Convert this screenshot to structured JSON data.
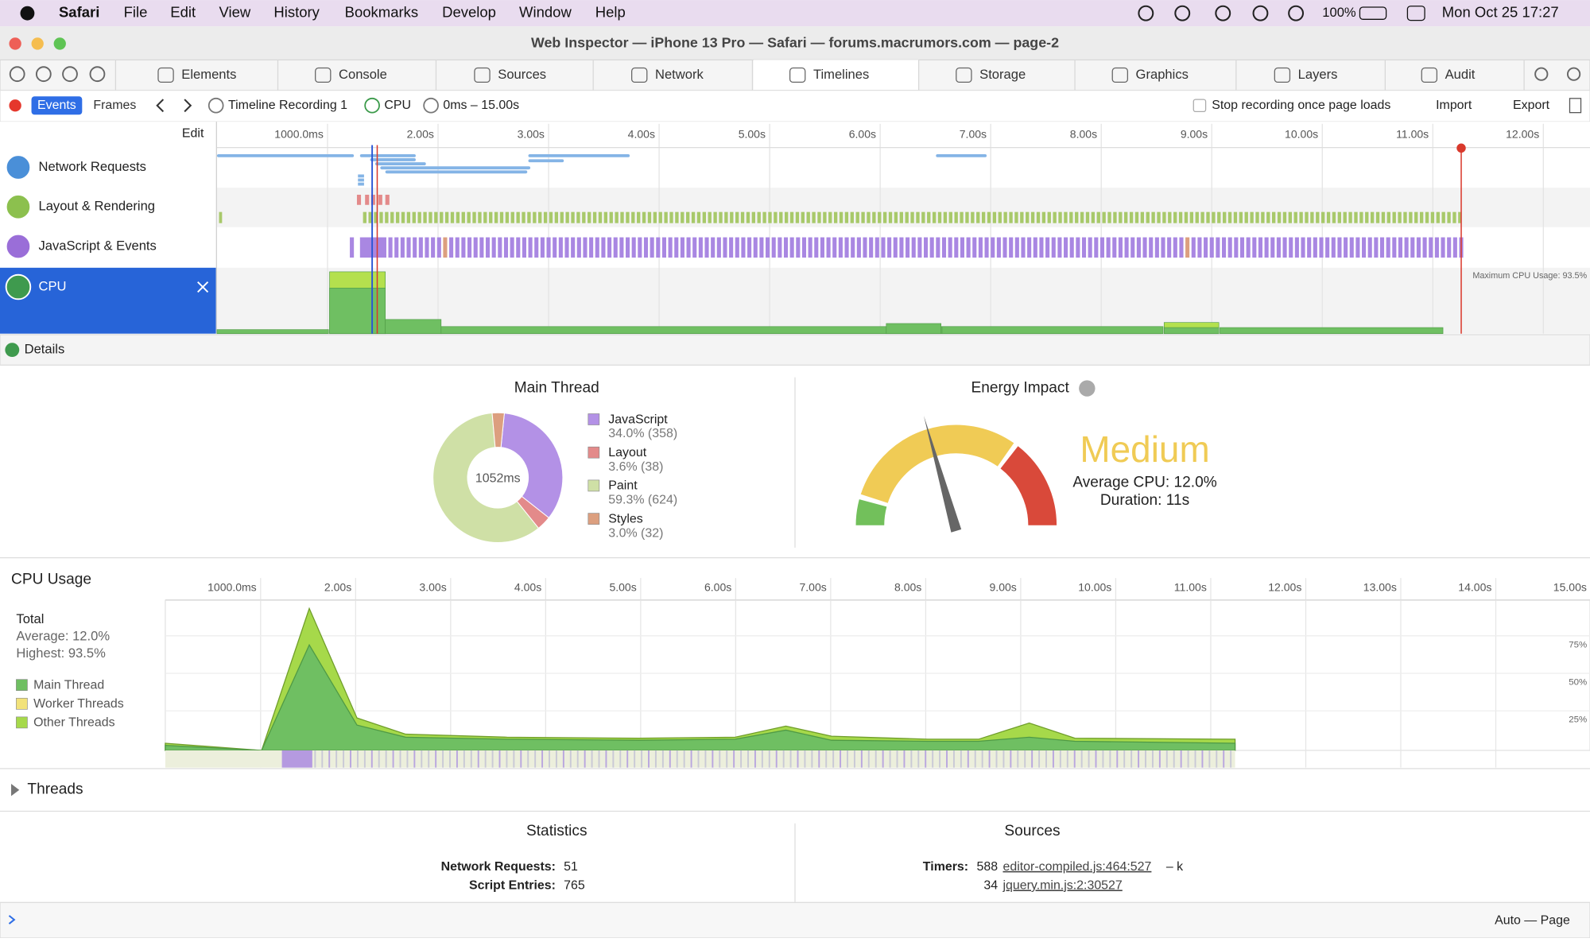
{
  "menubar": {
    "app": "Safari",
    "items": [
      "File",
      "Edit",
      "View",
      "History",
      "Bookmarks",
      "Develop",
      "Window",
      "Help"
    ],
    "battery": "100%",
    "clock": "Mon Oct 25  17:27"
  },
  "window_title": "Web Inspector — iPhone 13 Pro — Safari — forums.macrumors.com — page-2",
  "tabs": [
    "Elements",
    "Console",
    "Sources",
    "Network",
    "Timelines",
    "Storage",
    "Graphics",
    "Layers",
    "Audit"
  ],
  "toolbar": {
    "modes": [
      "Events",
      "Frames"
    ],
    "breadcrumbs": [
      "Timeline Recording 1",
      "CPU",
      "0ms – 15.00s"
    ],
    "stop_label": "Stop recording once page loads",
    "import": "Import",
    "export": "Export"
  },
  "timeline": {
    "edit": "Edit",
    "ruler": [
      "1000.0ms",
      "2.00s",
      "3.00s",
      "4.00s",
      "5.00s",
      "6.00s",
      "7.00s",
      "8.00s",
      "9.00s",
      "10.00s",
      "11.00s",
      "12.00s"
    ],
    "rows": [
      "Network Requests",
      "Layout & Rendering",
      "JavaScript & Events",
      "CPU"
    ],
    "max_cpu": "Maximum CPU Usage: 93.5%"
  },
  "details": "Details",
  "main_thread": {
    "title": "Main Thread",
    "center": "1052ms",
    "legend": [
      {
        "name": "JavaScript",
        "label": "34.0% (358)",
        "value": 34.0,
        "color": "#b391e6"
      },
      {
        "name": "Layout",
        "label": "3.6% (38)",
        "value": 3.6,
        "color": "#e38a8a"
      },
      {
        "name": "Paint",
        "label": "59.3% (624)",
        "value": 59.3,
        "color": "#cfe0a6"
      },
      {
        "name": "Styles",
        "label": "3.0% (32)",
        "value": 3.0,
        "color": "#dc9f7f"
      }
    ]
  },
  "energy": {
    "title": "Energy Impact",
    "level": "Medium",
    "average": "Average CPU: 12.0%",
    "duration": "Duration: 11s"
  },
  "cpu_usage": {
    "title": "CPU Usage",
    "ruler": [
      "1000.0ms",
      "2.00s",
      "3.00s",
      "4.00s",
      "5.00s",
      "6.00s",
      "7.00s",
      "8.00s",
      "9.00s",
      "10.00s",
      "11.00s",
      "12.00s",
      "13.00s",
      "14.00s",
      "15.00s"
    ],
    "total": "Total",
    "average": "Average: 12.0%",
    "highest": "Highest: 93.5%",
    "legend": [
      {
        "name": "Main Thread",
        "color": "#6fbf62"
      },
      {
        "name": "Worker Threads",
        "color": "#f2e27a"
      },
      {
        "name": "Other Threads",
        "color": "#a6d94a"
      }
    ],
    "yticks": [
      "75%",
      "50%",
      "25%"
    ]
  },
  "threads": "Threads",
  "statistics": {
    "title": "Statistics",
    "rows": [
      {
        "label": "Network Requests:",
        "value": 51
      },
      {
        "label": "Script Entries:",
        "value": 765
      }
    ]
  },
  "sources": {
    "title": "Sources",
    "rows": [
      {
        "label": "Timers:",
        "count": 588,
        "link": "editor-compiled.js:464:527",
        "extra": "– k"
      },
      {
        "count": 34,
        "link": "jquery.min.js:2:30527"
      }
    ]
  },
  "footer": {
    "context": "Auto — Page"
  }
}
